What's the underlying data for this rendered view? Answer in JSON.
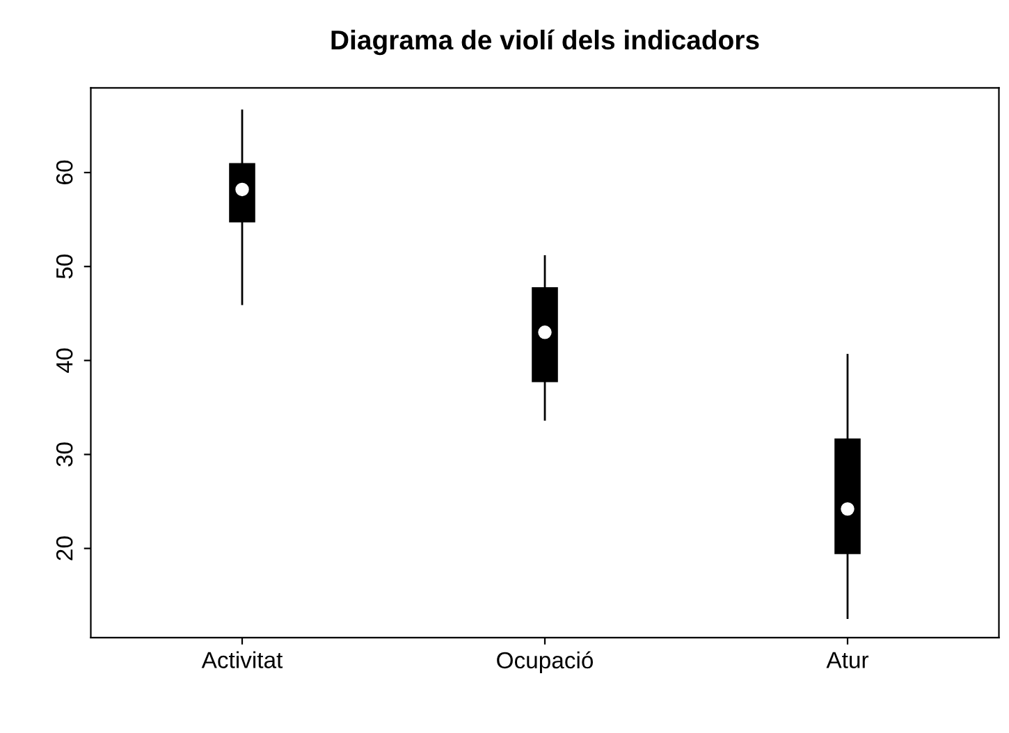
{
  "chart_data": {
    "type": "box",
    "title": "Diagrama de violí dels indicadors",
    "categories": [
      "Activitat",
      "Ocupació",
      "Atur"
    ],
    "series": [
      {
        "color": "#000000",
        "boxes": [
          {
            "low": 46.0,
            "q1": 54.8,
            "median": 58.2,
            "q3": 60.9,
            "high": 66.6
          },
          {
            "low": 33.7,
            "q1": 37.8,
            "median": 43.0,
            "q3": 47.7,
            "high": 51.1
          },
          {
            "low": 12.6,
            "q1": 19.5,
            "median": 24.2,
            "q3": 31.6,
            "high": 40.6
          }
        ]
      }
    ],
    "ylim": [
      10.5,
      69
    ],
    "yticks": [
      20,
      30,
      40,
      50,
      60
    ],
    "grid": false,
    "legend": false
  }
}
